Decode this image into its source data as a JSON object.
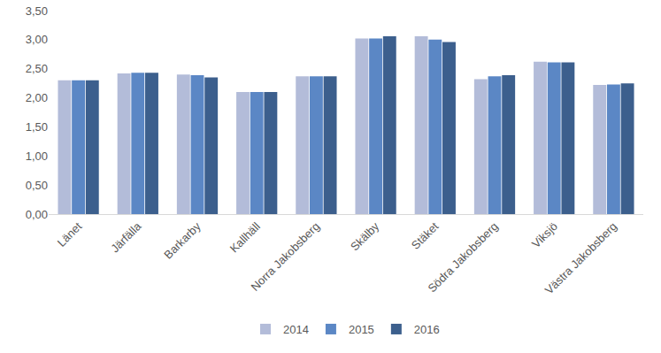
{
  "chart_data": {
    "type": "bar",
    "categories": [
      "Länet",
      "Järfälla",
      "Barkarby",
      "Kallhäll",
      "Norra Jakobsberg",
      "Skälby",
      "Stäket",
      "Södra Jakobsberg",
      "Viksjö",
      "Västra Jakobsberg"
    ],
    "series": [
      {
        "name": "2014",
        "color": "#b3bcd9",
        "values": [
          2.3,
          2.42,
          2.4,
          2.1,
          2.37,
          3.02,
          3.06,
          2.32,
          2.62,
          2.22
        ]
      },
      {
        "name": "2015",
        "color": "#5b87c5",
        "values": [
          2.3,
          2.43,
          2.39,
          2.1,
          2.37,
          3.02,
          3.0,
          2.37,
          2.61,
          2.23
        ]
      },
      {
        "name": "2016",
        "color": "#3c5f8d",
        "values": [
          2.3,
          2.43,
          2.35,
          2.1,
          2.37,
          3.06,
          2.96,
          2.39,
          2.61,
          2.25
        ]
      }
    ],
    "ylim": [
      0,
      3.5
    ],
    "yticks": [
      {
        "value": 0,
        "label": "0,00"
      },
      {
        "value": 0.5,
        "label": "0,50"
      },
      {
        "value": 1,
        "label": "1,00"
      },
      {
        "value": 1.5,
        "label": "1,50"
      },
      {
        "value": 2,
        "label": "2,00"
      },
      {
        "value": 2.5,
        "label": "2,50"
      },
      {
        "value": 3,
        "label": "3,00"
      },
      {
        "value": 3.5,
        "label": "3,50"
      }
    ],
    "grid": false,
    "legend": "bottom"
  }
}
